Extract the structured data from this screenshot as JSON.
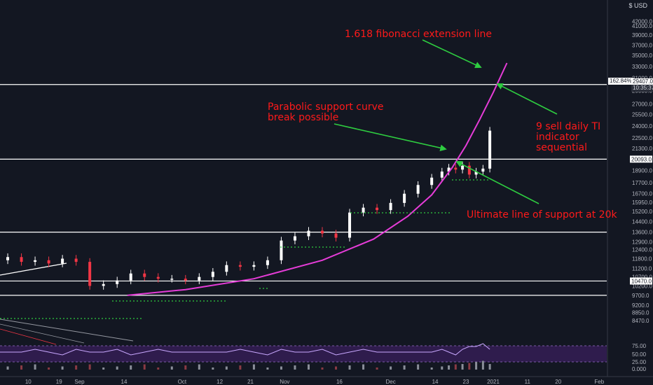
{
  "chart_data": {
    "type": "line",
    "title": "",
    "currency": "USD",
    "currency_marker": "$",
    "y_scale": "log",
    "ylim": [
      8100,
      44000
    ],
    "y_ticks": [
      "42000.0",
      "41000.0",
      "39000.0",
      "37000.0",
      "35000.0",
      "33000.0",
      "31000.0",
      "29000.0",
      "27000.0",
      "25500.0",
      "24000.0",
      "22500.0",
      "21300.0",
      "20093.0",
      "18900.0",
      "17700.0",
      "16700.0",
      "15950.0",
      "15200.0",
      "14400.0",
      "13600.0",
      "12900.0",
      "12400.0",
      "11800.0",
      "11200.0",
      "10700.0",
      "10470.0",
      "10200.0",
      "9700.0",
      "9200.0",
      "8850.0",
      "8470.0"
    ],
    "x_ticks": [
      "10",
      "19",
      "Sep",
      "14",
      "Oct",
      "12",
      "21",
      "Nov",
      "16",
      "Dec",
      "14",
      "23",
      "2021",
      "11",
      "20",
      "Feb"
    ],
    "x_tick_days": [
      -136,
      -127,
      -121,
      -108,
      -91,
      -80,
      -71,
      -61,
      -45,
      -30,
      -17,
      -8,
      0,
      10,
      19,
      31
    ],
    "price": {
      "days": [
        -146,
        -142,
        -138,
        -134,
        -130,
        -126,
        -122,
        -118,
        -114,
        -110,
        -106,
        -102,
        -98,
        -94,
        -90,
        -86,
        -82,
        -78,
        -74,
        -70,
        -66,
        -62,
        -58,
        -54,
        -50,
        -46,
        -42,
        -38,
        -34,
        -30,
        -26,
        -22,
        -18,
        -15,
        -13,
        -11,
        -9,
        -7,
        -5,
        -3,
        -1
      ],
      "values": [
        11700,
        11900,
        11600,
        11700,
        11500,
        11800,
        11600,
        10200,
        10300,
        10500,
        10900,
        10700,
        10600,
        10600,
        10500,
        10700,
        11000,
        11400,
        11300,
        11400,
        11700,
        13000,
        13300,
        13700,
        13500,
        13200,
        15100,
        15500,
        15300,
        15900,
        16700,
        17500,
        18200,
        18800,
        19200,
        19000,
        19400,
        18500,
        18800,
        19100,
        23400
      ]
    },
    "price_label": "29407.0",
    "countdown": "10:35:37",
    "fib_label": "162.84%",
    "horizontal_lines": [
      {
        "value": 29950
      },
      {
        "value": 20093,
        "label": "20093.0"
      },
      {
        "value": 13600
      },
      {
        "value": 10470,
        "label": "10470.0"
      },
      {
        "value": 9700
      }
    ],
    "parabolic_curve": {
      "color": "#e63cd8",
      "days": [
        -107,
        -90,
        -70,
        -50,
        -35,
        -25,
        -18,
        -12,
        -8,
        -4,
        0,
        4
      ],
      "values": [
        9700,
        10000,
        10600,
        11700,
        13100,
        14800,
        16600,
        19200,
        21600,
        24800,
        28700,
        33600
      ]
    },
    "rsi": {
      "levels": [
        "75.00",
        "50.00",
        "25.00"
      ]
    },
    "volume": {
      "label": "0.000"
    },
    "annotations": {
      "fib": "1.618 fibonacci extension line",
      "parabolic": [
        "Parabolic support curve",
        "break possible"
      ],
      "td_sell": [
        "9 sell daily TI",
        "indicator",
        "sequential"
      ],
      "support": "Ultimate line of support at 20k"
    },
    "arrow_color": "#2ecc40",
    "up_color": "#ffffff",
    "down_color": "#f23645",
    "grid": false
  }
}
